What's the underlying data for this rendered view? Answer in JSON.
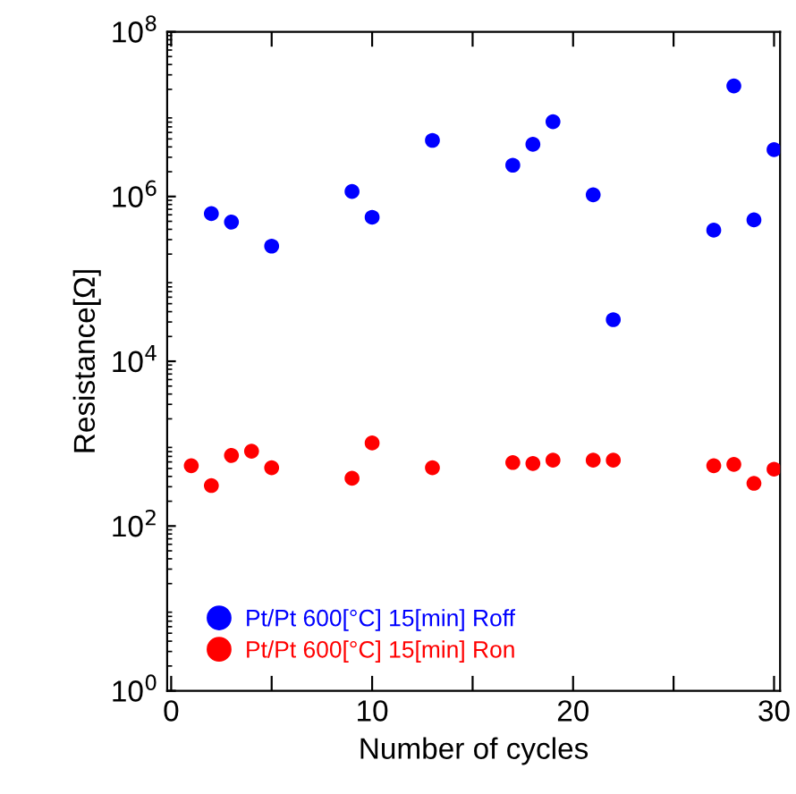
{
  "chart_data": {
    "type": "scatter",
    "xlabel": "Number of cycles",
    "ylabel": "Resistance[Ω]",
    "xlim": [
      -0.2,
      30.3
    ],
    "ylim": [
      1,
      100000000
    ],
    "log": "y",
    "marker": "circle",
    "legend": "bottom left",
    "grid": false,
    "xticks": [
      0,
      {
        "value": 5,
        "label": null
      },
      10,
      {
        "value": 15,
        "label": null
      },
      20,
      {
        "value": 25,
        "label": null
      },
      30
    ],
    "yticks": [
      {
        "value": 1,
        "label": "10$^{0}$"
      },
      {
        "value": 100,
        "label": "10$^{2}$"
      },
      {
        "value": 10000,
        "label": "10$^{4}$"
      },
      {
        "value": 1000000,
        "label": "10$^{6}$"
      },
      {
        "value": 100000000,
        "label": "10$^{8}$"
      }
    ],
    "series": [
      {
        "name": "Pt/Pt 600[°C] 15[min] Roff",
        "color": "#0000ff",
        "x": [
          2,
          3,
          5,
          9,
          10,
          13,
          17,
          18,
          19,
          21,
          22,
          27,
          28,
          29,
          30
        ],
        "values": [
          620000,
          490000,
          250000,
          1150000,
          560000,
          4800000,
          2400000,
          4300000,
          8100000,
          1050000,
          32000,
          390000,
          22000000,
          520000,
          3700000
        ]
      },
      {
        "name": "Pt/Pt 600[°C] 15[min] Ron",
        "color": "#ff0000",
        "x": [
          1,
          2,
          3,
          4,
          5,
          9,
          10,
          13,
          17,
          18,
          19,
          21,
          22,
          27,
          28,
          29,
          30
        ],
        "values": [
          540,
          310,
          720,
          810,
          510,
          380,
          1020,
          510,
          590,
          575,
          630,
          630,
          630,
          540,
          560,
          330,
          490
        ]
      }
    ]
  }
}
